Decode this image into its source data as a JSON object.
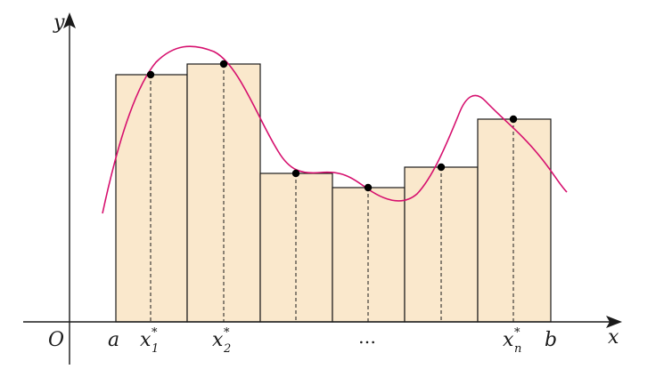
{
  "labels": {
    "y_axis": "y",
    "x_axis": "x",
    "origin": "O",
    "a": "a",
    "b": "b",
    "ellipsis": "…",
    "sample_base": "x",
    "sample_star": "*",
    "sample_1_sub": "1",
    "sample_2_sub": "2",
    "sample_n_sub": "n"
  },
  "colors": {
    "rect_fill": "#fae8cc",
    "rect_stroke": "#1a1a1a",
    "curve": "#d6106e",
    "axis": "#1a1a1a",
    "point": "#000000"
  },
  "diagram": {
    "description_kind": "riemann-sum-figure",
    "rectangle_count": 6,
    "sample_point_labels_shown": [
      "x1*",
      "x2*",
      "xn*"
    ]
  }
}
